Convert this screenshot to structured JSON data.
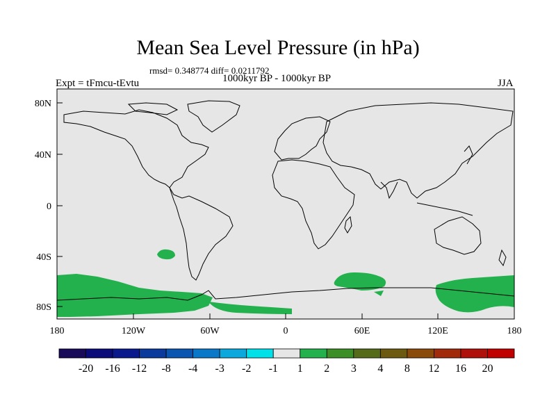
{
  "title": "Mean Sea Level Pressure (in hPa)",
  "stats": "rmsd= 0.348774 diff= 0.0211792",
  "period": "1000kyr BP - 1000kyr BP",
  "experiment": "Expt = tFmcu-tEvtu",
  "season": "JJA",
  "axes": {
    "y_ticks": [
      "80N",
      "40N",
      "0",
      "40S",
      "80S"
    ],
    "x_ticks": [
      "180",
      "120W",
      "60W",
      "0",
      "60E",
      "120E",
      "180"
    ]
  },
  "colors": {
    "background_field": "#e6e6e6",
    "positive_1_2": "#22b14c",
    "coast": "#000000"
  },
  "colorbar": {
    "labels": [
      "-20",
      "-16",
      "-12",
      "-8",
      "-4",
      "-3",
      "-2",
      "-1",
      "1",
      "2",
      "3",
      "4",
      "8",
      "12",
      "16",
      "20"
    ],
    "colors": [
      "#1a0a5a",
      "#0b0b7a",
      "#0a1a8c",
      "#0a3a9c",
      "#0a55b0",
      "#0a78c8",
      "#0aa8dc",
      "#00e0e8",
      "#e6e6e6",
      "#22b14c",
      "#3c8f26",
      "#556b1a",
      "#6b5a10",
      "#8a4a0a",
      "#a02a0a",
      "#b0100a",
      "#c00000"
    ]
  }
}
